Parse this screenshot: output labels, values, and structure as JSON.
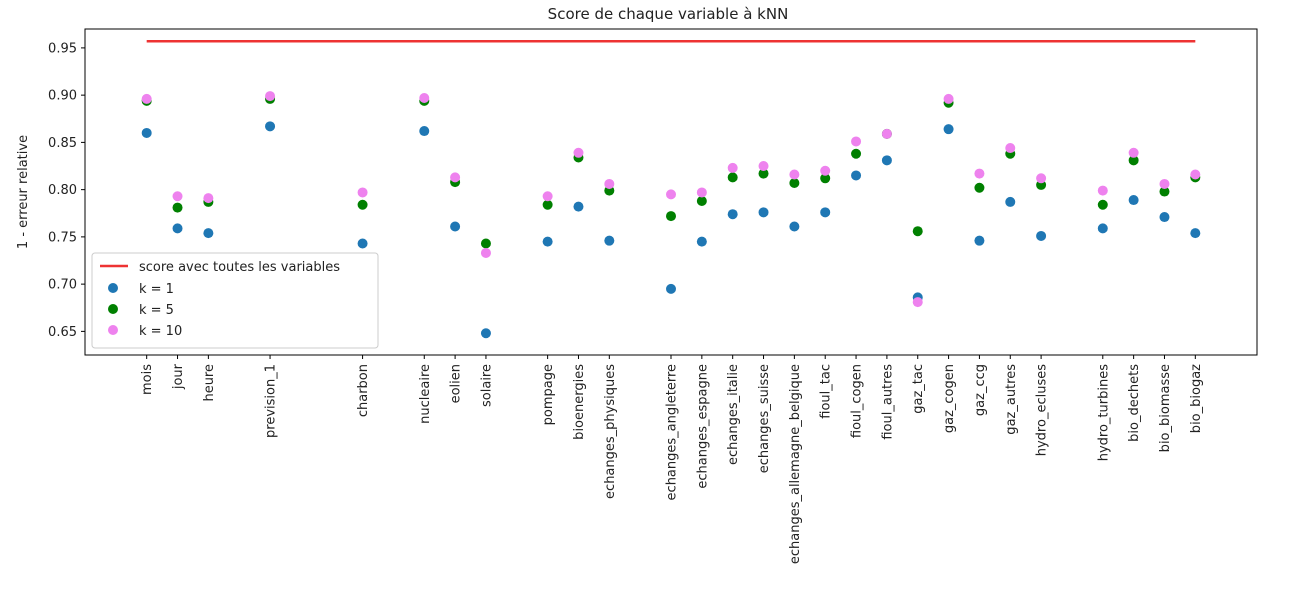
{
  "chart_data": {
    "type": "scatter",
    "title": "Score de chaque variable à kNN",
    "xlabel": "",
    "ylabel": "1 - erreur relative",
    "ylim": [
      0.625,
      0.97
    ],
    "yticks": [
      "0.65",
      "0.70",
      "0.75",
      "0.80",
      "0.85",
      "0.90",
      "0.95"
    ],
    "grid": false,
    "legend_position": "lower-left",
    "categories": [
      {
        "label": "mois",
        "x": 2
      },
      {
        "label": "jour",
        "x": 3
      },
      {
        "label": "heure",
        "x": 4
      },
      {
        "label": "prevision_1",
        "x": 6
      },
      {
        "label": "charbon",
        "x": 9
      },
      {
        "label": "nucleaire",
        "x": 11
      },
      {
        "label": "eolien",
        "x": 12
      },
      {
        "label": "solaire",
        "x": 13
      },
      {
        "label": "pompage",
        "x": 15
      },
      {
        "label": "bioenergies",
        "x": 16
      },
      {
        "label": "echanges_physiques",
        "x": 17
      },
      {
        "label": "echanges_angleterre",
        "x": 19
      },
      {
        "label": "echanges_espagne",
        "x": 20
      },
      {
        "label": "echanges_italie",
        "x": 21
      },
      {
        "label": "echanges_suisse",
        "x": 22
      },
      {
        "label": "echanges_allemagne_belgique",
        "x": 23
      },
      {
        "label": "fioul_tac",
        "x": 24
      },
      {
        "label": "fioul_cogen",
        "x": 25
      },
      {
        "label": "fioul_autres",
        "x": 26
      },
      {
        "label": "gaz_tac",
        "x": 27
      },
      {
        "label": "gaz_cogen",
        "x": 28
      },
      {
        "label": "gaz_ccg",
        "x": 29
      },
      {
        "label": "gaz_autres",
        "x": 30
      },
      {
        "label": "hydro_ecluses",
        "x": 31
      },
      {
        "label": "hydro_turbines",
        "x": 33
      },
      {
        "label": "bio_dechets",
        "x": 34
      },
      {
        "label": "bio_biomasse",
        "x": 35
      },
      {
        "label": "bio_biogaz",
        "x": 36
      }
    ],
    "reference_line": {
      "name": "score avec toutes les variables",
      "value": 0.957,
      "color": "#ee3333"
    },
    "series": [
      {
        "name": "k = 1",
        "color": "#1f77b4",
        "values": [
          0.86,
          0.759,
          0.754,
          0.867,
          0.743,
          0.862,
          0.761,
          0.648,
          0.745,
          0.782,
          0.746,
          0.695,
          0.745,
          0.774,
          0.776,
          0.761,
          0.776,
          0.815,
          0.831,
          0.686,
          0.864,
          0.746,
          0.787,
          0.751,
          0.759,
          0.789,
          0.771,
          0.754
        ]
      },
      {
        "name": "k = 5",
        "color": "#008000",
        "values": [
          0.894,
          0.781,
          0.787,
          0.896,
          0.784,
          0.894,
          0.808,
          0.743,
          0.784,
          0.834,
          0.799,
          0.772,
          0.788,
          0.813,
          0.817,
          0.807,
          0.812,
          0.838,
          0.859,
          0.756,
          0.892,
          0.802,
          0.838,
          0.805,
          0.784,
          0.831,
          0.798,
          0.813
        ]
      },
      {
        "name": "k = 10",
        "color": "#ee82ee",
        "values": [
          0.896,
          0.793,
          0.791,
          0.899,
          0.797,
          0.897,
          0.813,
          0.733,
          0.793,
          0.839,
          0.806,
          0.795,
          0.797,
          0.823,
          0.825,
          0.816,
          0.82,
          0.851,
          0.859,
          0.681,
          0.896,
          0.817,
          0.844,
          0.812,
          0.799,
          0.839,
          0.806,
          0.816
        ]
      }
    ]
  }
}
